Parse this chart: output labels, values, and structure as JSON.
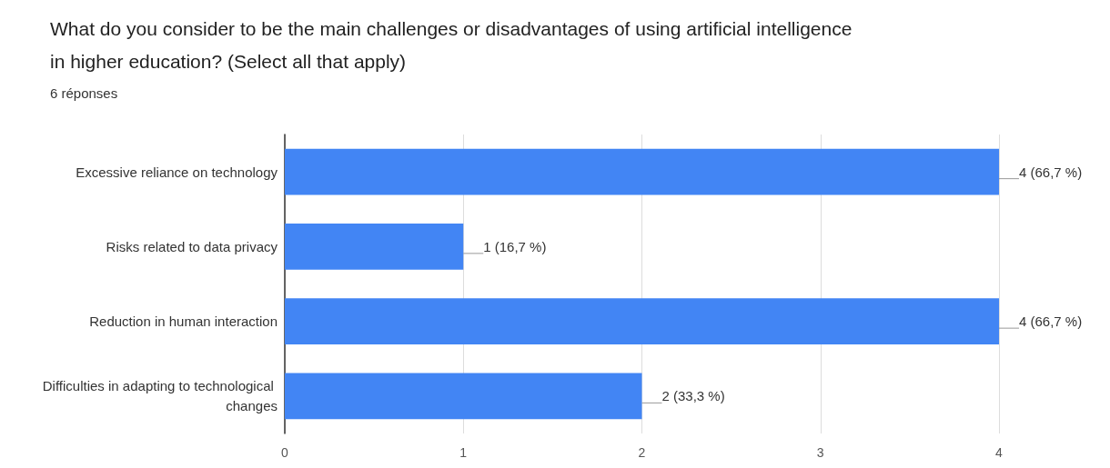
{
  "chart_data": {
    "type": "bar",
    "orientation": "horizontal",
    "title": "What do you consider to be the main challenges or disadvantages of using artificial intelligence in higher education? (Select all that apply)",
    "subtitle": "6 réponses",
    "categories": [
      "Excessive reliance on technology",
      "Risks related to data privacy",
      "Reduction in human interaction",
      "Difficulties in adapting to technological changes"
    ],
    "values": [
      4,
      1,
      4,
      2
    ],
    "value_labels": [
      "4 (66,7 %)",
      "1 (16,7 %)",
      "4 (66,7 %)",
      "2 (33,3 %)"
    ],
    "color": "#4285f4",
    "xlim": [
      0,
      4
    ],
    "xticks": [
      0,
      1,
      2,
      3,
      4
    ],
    "grid": "x"
  }
}
